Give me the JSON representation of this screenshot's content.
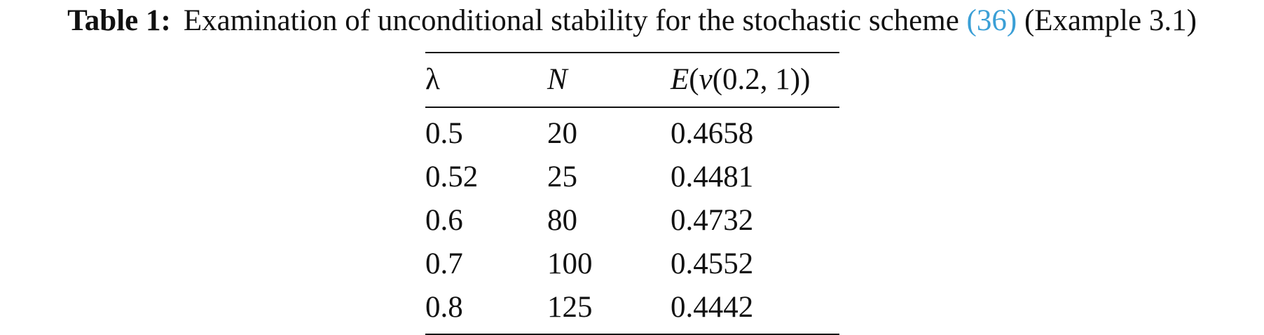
{
  "caption": {
    "label": "Table 1:",
    "text_before": "Examination of unconditional stability for the stochastic scheme",
    "ref": "(36)",
    "text_after": "(Example 3.1)"
  },
  "table": {
    "columns": [
      "λ",
      "N",
      "E(v(0.2, 1))"
    ],
    "header_parts": {
      "col3": [
        "E",
        "(",
        "v",
        "(0.2, 1))"
      ]
    },
    "rows": [
      [
        "0.5",
        "20",
        "0.4658"
      ],
      [
        "0.52",
        "25",
        "0.4481"
      ],
      [
        "0.6",
        "80",
        "0.4732"
      ],
      [
        "0.7",
        "100",
        "0.4552"
      ],
      [
        "0.8",
        "125",
        "0.4442"
      ]
    ]
  }
}
